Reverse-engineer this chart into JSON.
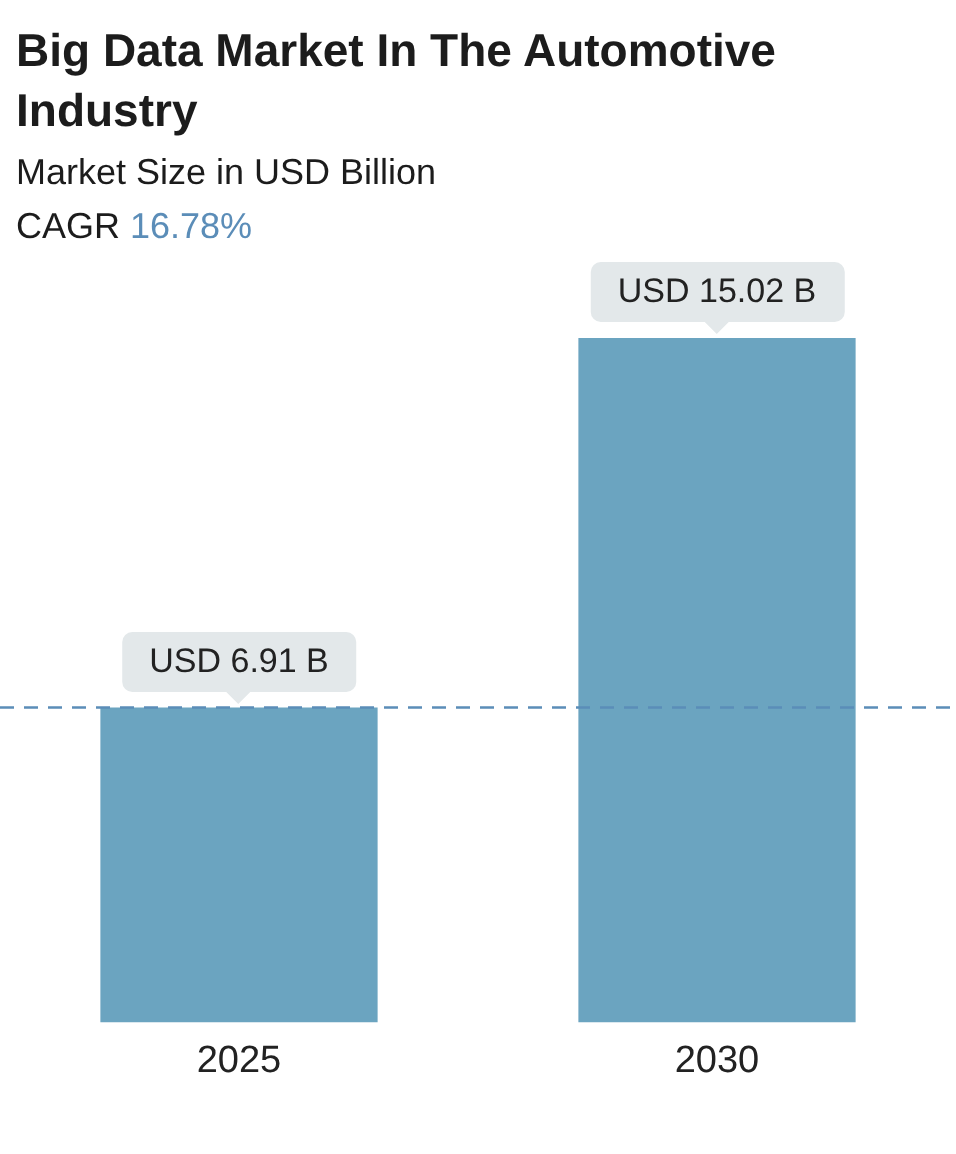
{
  "chart_data": {
    "type": "bar",
    "title": "Big Data Market In The Automotive Industry",
    "subtitle": "Market Size in USD Billion",
    "annotations": [
      "CAGR 16.78%"
    ],
    "categories": [
      "2025",
      "2030"
    ],
    "series": [
      {
        "color": "#6ba4c0",
        "values": [
          6.91,
          15.02
        ],
        "value_labels": [
          "USD 6.91 B",
          "USD 15.02 B"
        ]
      }
    ],
    "ref_lines": [
      {
        "axis": "y",
        "value": 6.91,
        "color": "#5b8db8",
        "line_style": "dashed"
      }
    ],
    "grid": false,
    "legend": false,
    "tick_labels": "x"
  }
}
